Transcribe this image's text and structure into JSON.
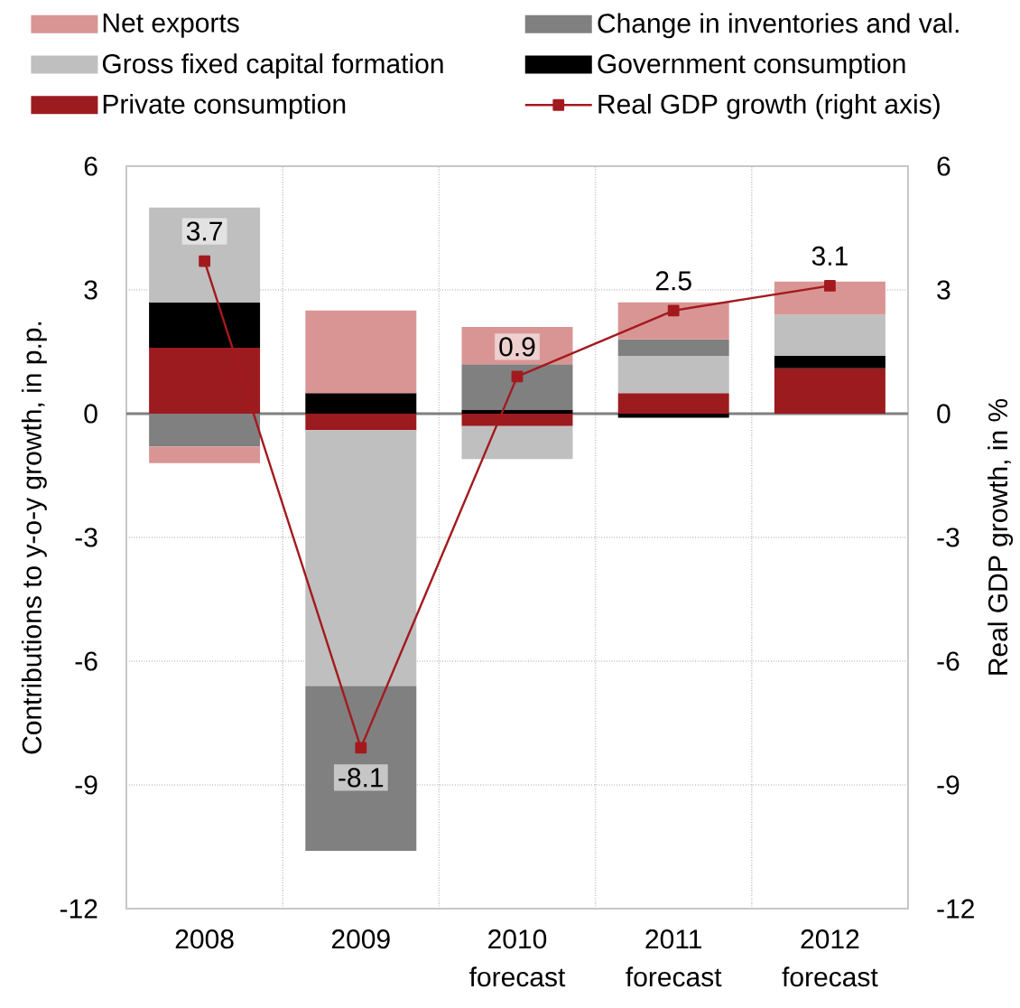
{
  "chart_data": {
    "type": "bar",
    "stacked": true,
    "categories": [
      "2008",
      "2009",
      "2010 forecast",
      "2011 forecast",
      "2012 forecast"
    ],
    "ylabel": "Contributions to y-o-y growth, in p.p.",
    "y2label": "Real GDP growth, in %",
    "ylim": [
      -12,
      6
    ],
    "yticks": [
      -12,
      -9,
      -6,
      -3,
      0,
      3,
      6
    ],
    "y2lim": [
      -12,
      6
    ],
    "y2ticks": [
      -12,
      -9,
      -6,
      -3,
      0,
      3,
      6
    ],
    "grid": true,
    "legend": "top",
    "series": [
      {
        "name": "Private consumption",
        "color": "#9c1b1f",
        "values": [
          1.6,
          -0.4,
          -0.3,
          0.5,
          1.1
        ]
      },
      {
        "name": "Government consumption",
        "color": "#000000",
        "values": [
          1.1,
          0.5,
          0.1,
          -0.1,
          0.3
        ]
      },
      {
        "name": "Gross fixed capital formation",
        "color": "#bfbfbf",
        "values": [
          2.3,
          -6.2,
          -0.8,
          0.9,
          1.0
        ]
      },
      {
        "name": "Change in inventories and val.",
        "color": "#808080",
        "values": [
          -0.8,
          -4.0,
          1.1,
          0.4,
          null
        ]
      },
      {
        "name": "Net exports",
        "color": "#d99594",
        "values": [
          -0.4,
          2.0,
          0.9,
          0.9,
          0.8
        ]
      },
      {
        "name": "Real GDP growth (right axis)",
        "type": "line",
        "axis": "y2",
        "color": "#a31a1e",
        "marker": "square",
        "data_labels": true,
        "values": [
          3.7,
          -8.1,
          0.9,
          2.5,
          3.1
        ]
      }
    ]
  }
}
